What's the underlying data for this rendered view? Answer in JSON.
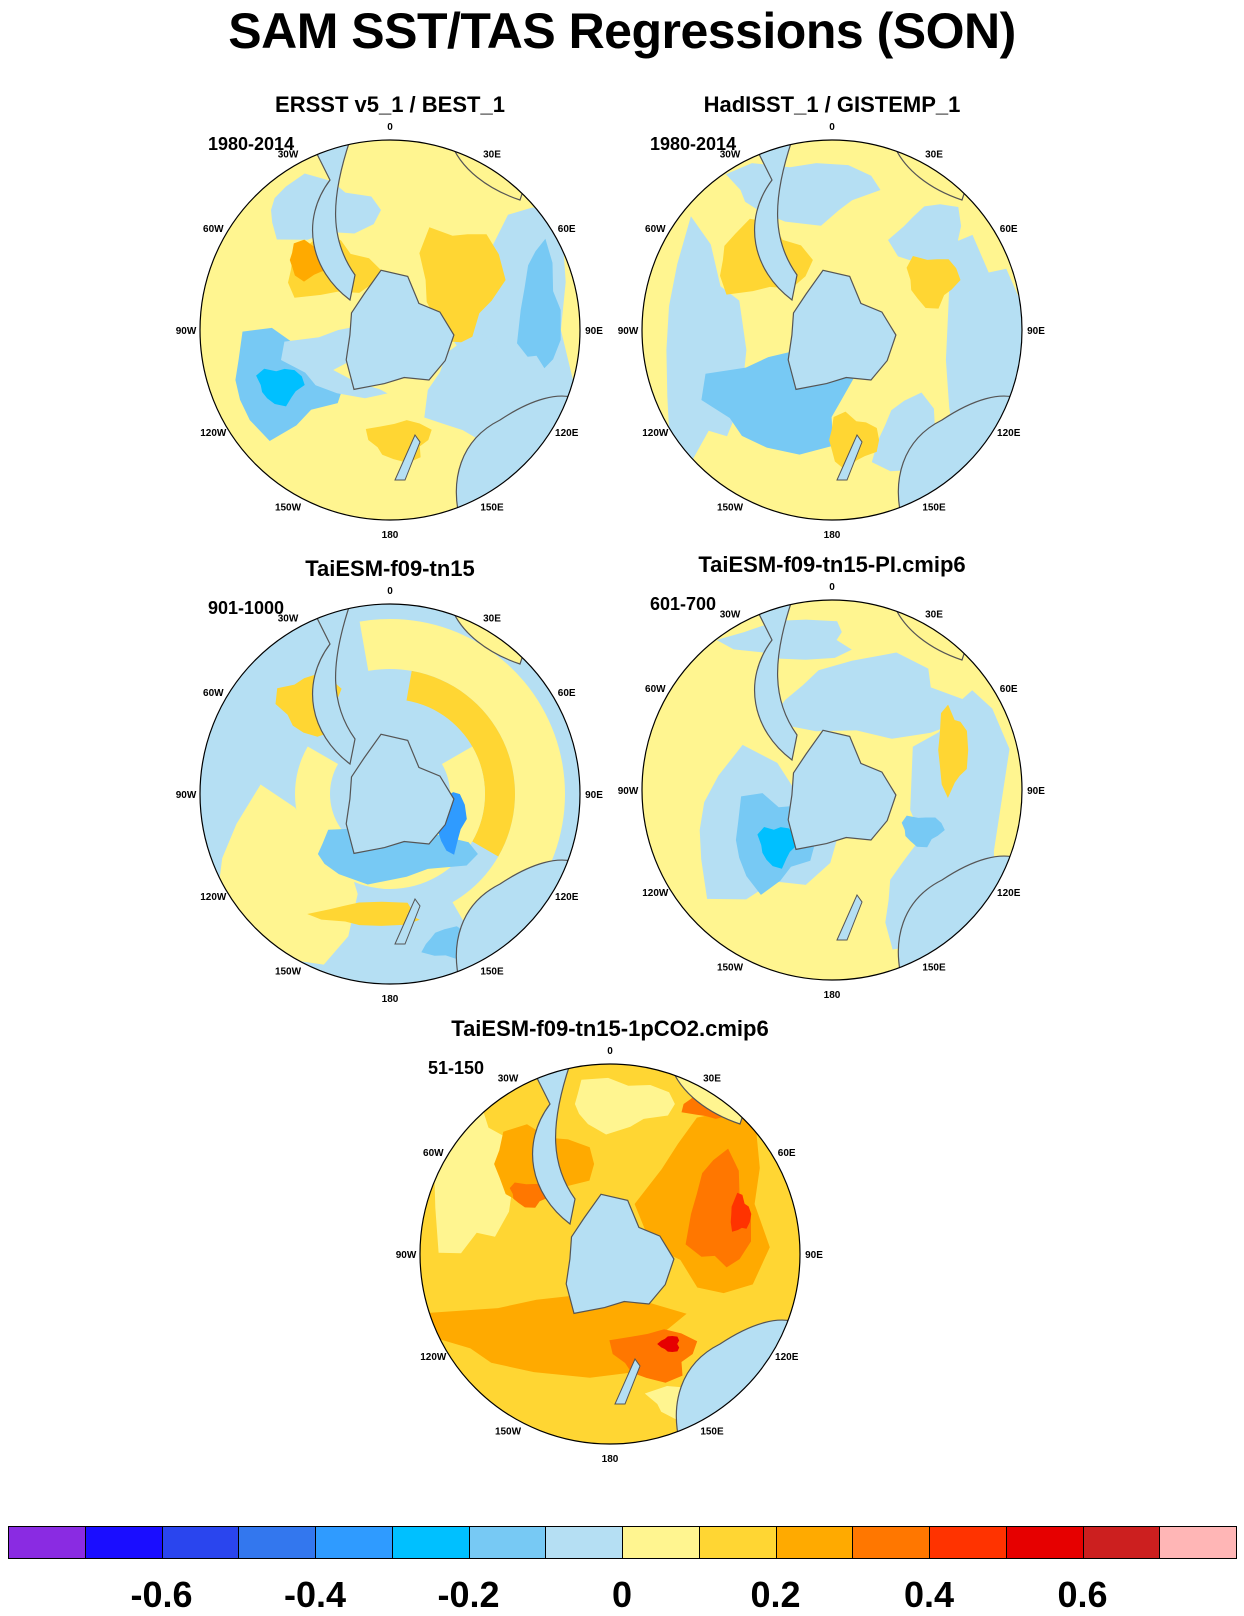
{
  "title": "SAM SST/TAS Regressions (SON)",
  "panels": [
    {
      "title": "ERSST v5_1 / BEST_1",
      "period": "1980-2014"
    },
    {
      "title": "HadISST_1 / GISTEMP_1",
      "period": "1980-2014"
    },
    {
      "title": "TaiESM-f09-tn15",
      "period": "901-1000"
    },
    {
      "title": "TaiESM-f09-tn15-PI.cmip6",
      "period": "601-700"
    },
    {
      "title": "TaiESM-f09-tn15-1pCO2.cmip6",
      "period": "51-150"
    }
  ],
  "longitude_labels": [
    "0",
    "30E",
    "60E",
    "90E",
    "120E",
    "150E",
    "180",
    "150W",
    "120W",
    "90W",
    "60W",
    "30W"
  ],
  "colorbar": {
    "colors": [
      "#8a2be2",
      "#1a0dff",
      "#2a45ee",
      "#3377ee",
      "#2f9bff",
      "#00c0ff",
      "#77c9f4",
      "#b5dff3",
      "#fff590",
      "#ffd633",
      "#ffaa00",
      "#ff7700",
      "#ff3300",
      "#e60000",
      "#cc1f1f",
      "#ffb6b6"
    ],
    "tick_labels": [
      "-0.6",
      "-0.4",
      "-0.2",
      "0",
      "0.2",
      "0.4",
      "0.6"
    ]
  },
  "chart_data": {
    "type": "heatmap",
    "title": "SAM SST/TAS Regressions (SON)",
    "projection": "south-polar-stereographic",
    "colorbar_levels": [
      -0.7,
      -0.6,
      -0.5,
      -0.4,
      -0.3,
      -0.2,
      -0.1,
      0,
      0.1,
      0.2,
      0.3,
      0.4,
      0.5,
      0.6,
      0.7
    ],
    "panel_summaries": [
      {
        "name": "ERSST v5_1 / BEST_1",
        "range": [
          -0.3,
          0.3
        ]
      },
      {
        "name": "HadISST_1 / GISTEMP_1",
        "range": [
          -0.3,
          0.2
        ]
      },
      {
        "name": "TaiESM-f09-tn15",
        "range": [
          -0.4,
          0.2
        ]
      },
      {
        "name": "TaiESM-f09-tn15-PI.cmip6",
        "range": [
          -0.3,
          0.2
        ]
      },
      {
        "name": "TaiESM-f09-tn15-1pCO2.cmip6",
        "range": [
          0,
          0.5
        ]
      }
    ]
  }
}
